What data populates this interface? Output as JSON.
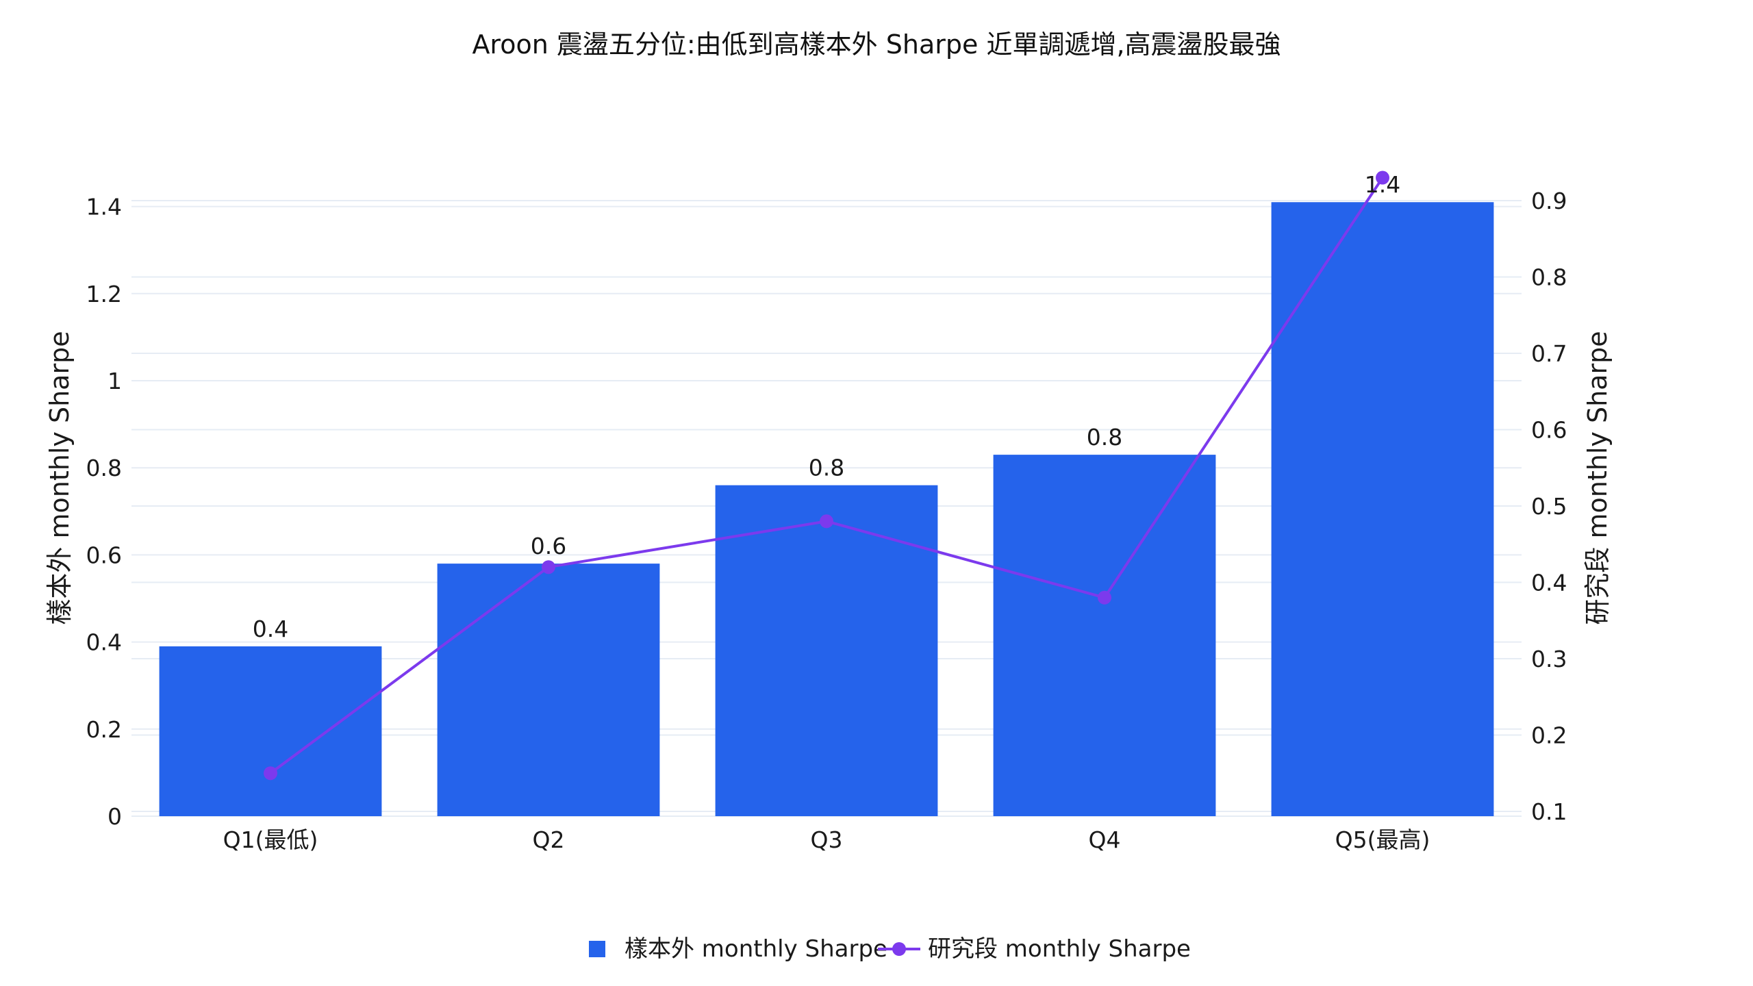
{
  "chart_data": {
    "type": "bar",
    "title": "Aroon 震盪五分位:由低到高樣本外 Sharpe 近單調遞增,高震盪股最強",
    "categories": [
      "Q1(最低)",
      "Q2",
      "Q3",
      "Q4",
      "Q5(最高)"
    ],
    "series": [
      {
        "name": "樣本外 monthly Sharpe",
        "type": "bar",
        "axis": "left",
        "color": "#2563eb",
        "values": [
          0.39,
          0.58,
          0.76,
          0.83,
          1.41
        ],
        "data_labels": [
          "0.4",
          "0.6",
          "0.8",
          "0.8",
          "1.4"
        ]
      },
      {
        "name": "研究段 monthly Sharpe",
        "type": "line",
        "axis": "right",
        "color": "#7c3aed",
        "marker": "circle",
        "values": [
          0.15,
          0.42,
          0.48,
          0.38,
          0.93
        ]
      }
    ],
    "y_left": {
      "label": "樣本外 monthly Sharpe",
      "range": [
        0,
        1.55
      ],
      "ticks": [
        0,
        0.2,
        0.4,
        0.6,
        0.8,
        1,
        1.2,
        1.4
      ],
      "tick_labels": [
        "0",
        "0.2",
        "0.4",
        "0.6",
        "0.8",
        "1",
        "1.2",
        "1.4"
      ]
    },
    "y_right": {
      "label": "研究段 monthly Sharpe",
      "range": [
        0.1,
        0.9
      ],
      "ticks": [
        0.1,
        0.2,
        0.3,
        0.4,
        0.5,
        0.6,
        0.7,
        0.8,
        0.9
      ],
      "tick_labels": [
        "0.1",
        "0.2",
        "0.3",
        "0.4",
        "0.5",
        "0.6",
        "0.7",
        "0.8",
        "0.9"
      ]
    },
    "grid": true,
    "legend_position": "bottom-center"
  }
}
